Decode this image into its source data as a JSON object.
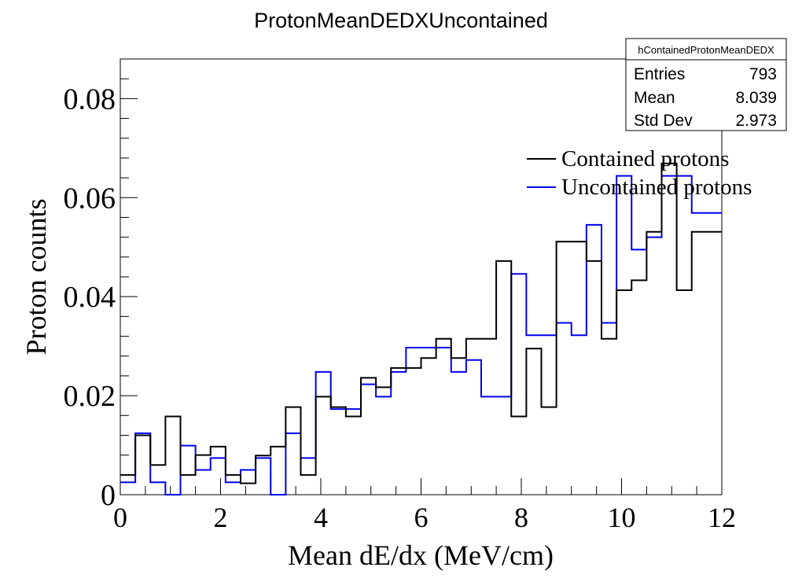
{
  "chart_data": {
    "type": "step",
    "title": "ProtonMeanDEDXUncontained",
    "xlabel": "Mean dE/dx (MeV/cm)",
    "ylabel": "Proton counts",
    "xlim": [
      0,
      12
    ],
    "ylim": [
      0,
      0.088
    ],
    "x_ticks": [
      0,
      2,
      4,
      6,
      8,
      10,
      12
    ],
    "x_tick_labels": [
      "0",
      "2",
      "4",
      "6",
      "8",
      "10",
      "12"
    ],
    "y_ticks": [
      0,
      0.02,
      0.04,
      0.06,
      0.08
    ],
    "y_tick_labels": [
      "0",
      "0.02",
      "0.04",
      "0.06",
      "0.08"
    ],
    "bin_edges_start": 0,
    "bin_width": 0.3,
    "grid": false,
    "legend_position": "top-right",
    "series": [
      {
        "name": "Contained protons",
        "color": "#000000",
        "values": [
          0.004,
          0.012,
          0.006,
          0.0158,
          0.004,
          0.008,
          0.0097,
          0.004,
          0.0023,
          0.0079,
          0.0097,
          0.0177,
          0.004,
          0.0198,
          0.0177,
          0.0158,
          0.0236,
          0.0217,
          0.0256,
          0.0256,
          0.0276,
          0.0315,
          0.0276,
          0.0315,
          0.0315,
          0.0472,
          0.0158,
          0.0295,
          0.0177,
          0.0511,
          0.0511,
          0.0472,
          0.0315,
          0.0413,
          0.0433,
          0.0531,
          0.0669,
          0.0413,
          0.0531,
          0.0531
        ]
      },
      {
        "name": "Uncontained protons",
        "color": "#0000ee",
        "values": [
          0.0025,
          0.0124,
          0.0025,
          0.0,
          0.0099,
          0.005,
          0.0074,
          0.0025,
          0.005,
          0.0074,
          0.0,
          0.0124,
          0.0074,
          0.0248,
          0.0173,
          0.0173,
          0.0223,
          0.0198,
          0.0248,
          0.0297,
          0.0297,
          0.0297,
          0.0248,
          0.0272,
          0.0198,
          0.0198,
          0.0446,
          0.0322,
          0.0322,
          0.0347,
          0.0322,
          0.0545,
          0.0347,
          0.0644,
          0.0495,
          0.052,
          0.0644,
          0.0644,
          0.0569,
          0.0569
        ]
      }
    ],
    "stats_box": {
      "name": "hContainedProtonMeanDEDX",
      "rows": [
        {
          "label": "Entries",
          "value": "793"
        },
        {
          "label": "Mean",
          "value": "8.039"
        },
        {
          "label": "Std Dev",
          "value": "2.973"
        }
      ]
    }
  }
}
